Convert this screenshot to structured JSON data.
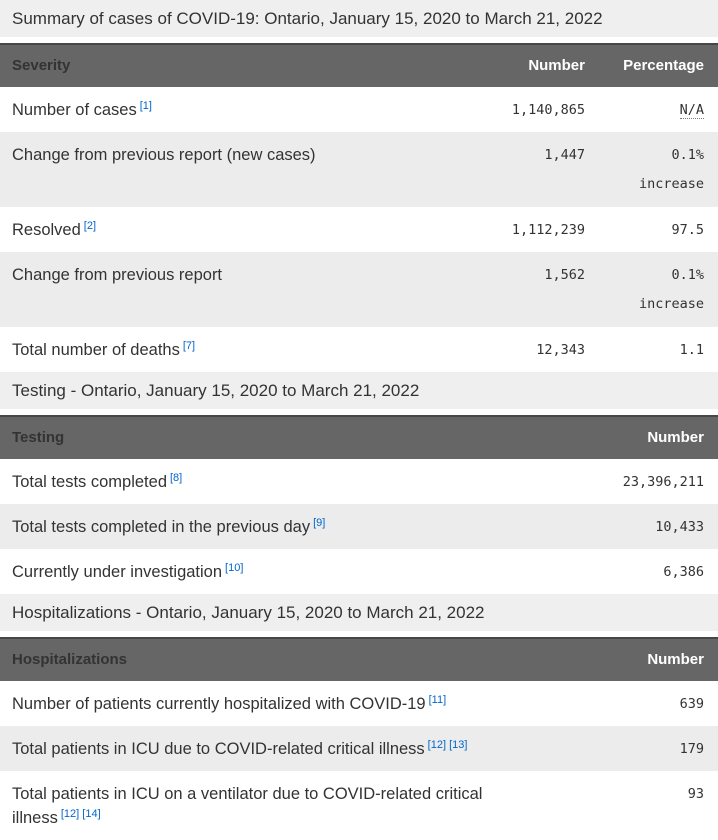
{
  "colors": {
    "table_header_bg": "#666666",
    "table_header_border": "#474747",
    "table_header_text": "#ffffff",
    "section_band_bg": "#efefef",
    "zebra_row_bg": "#ececec",
    "body_text": "#333333",
    "footnote_link": "#0066cc"
  },
  "sections": {
    "summary_title": "Summary of cases of COVID-19: Ontario, January 15, 2020 to March 21, 2022",
    "testing_title": "Testing - Ontario, January 15, 2020 to March 21, 2022",
    "hospitalizations_title": "Hospitalizations - Ontario, January 15, 2020 to March 21, 2022"
  },
  "severity_table": {
    "headers": {
      "col1": "Severity",
      "col2": "Number",
      "col3": "Percentage"
    },
    "rows": [
      {
        "label": "Number of cases",
        "footnotes": [
          "[1]"
        ],
        "number": "1,140,865",
        "percentage": "N/A"
      },
      {
        "label": "Change from previous report (new cases)",
        "footnotes": [],
        "number": "1,447",
        "percentage": "0.1%",
        "percentage_note": "increase"
      },
      {
        "label": "Resolved",
        "footnotes": [
          "[2]"
        ],
        "number": "1,112,239",
        "percentage": "97.5"
      },
      {
        "label": "Change from previous report",
        "footnotes": [],
        "number": "1,562",
        "percentage": "0.1%",
        "percentage_note": "increase"
      },
      {
        "label": "Total number of deaths",
        "footnotes": [
          "[7]"
        ],
        "number": "12,343",
        "percentage": "1.1"
      }
    ]
  },
  "testing_table": {
    "headers": {
      "col1": "Testing",
      "col2": "Number"
    },
    "rows": [
      {
        "label": "Total tests completed",
        "footnotes": [
          "[8]"
        ],
        "number": "23,396,211"
      },
      {
        "label": "Total tests completed in the previous day",
        "footnotes": [
          "[9]"
        ],
        "number": "10,433"
      },
      {
        "label": "Currently under investigation",
        "footnotes": [
          "[10]"
        ],
        "number": "6,386"
      }
    ]
  },
  "hospitalizations_table": {
    "headers": {
      "col1": "Hospitalizations",
      "col2": "Number"
    },
    "rows": [
      {
        "label": "Number of patients currently hospitalized with COVID-19",
        "footnotes": [
          "[11]"
        ],
        "number": "639"
      },
      {
        "label": "Total patients in ICU due to COVID-related critical illness",
        "footnotes": [
          "[12]",
          "[13]"
        ],
        "number": "179"
      },
      {
        "label": "Total patients in ICU on a ventilator due to COVID-related critical illness",
        "footnotes": [
          "[12]",
          "[14]"
        ],
        "number": "93"
      }
    ]
  }
}
